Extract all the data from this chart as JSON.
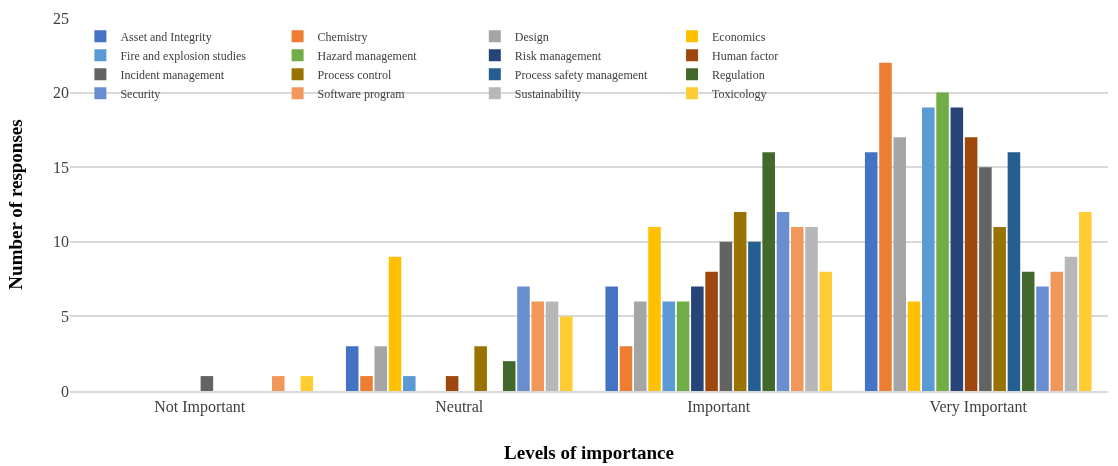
{
  "chart_data": {
    "type": "bar",
    "xlabel": "Levels of importance",
    "ylabel": "Number of responses",
    "categories": [
      "Not Important",
      "Neutral",
      "Important",
      "Very Important"
    ],
    "ylim": [
      0,
      25
    ],
    "yticks": [
      0,
      5,
      10,
      15,
      20,
      25
    ],
    "grid": "y",
    "legend": "top left",
    "series": [
      {
        "name": "Asset and Integrity",
        "color": "#4472c4",
        "values": [
          0,
          3,
          7,
          16
        ]
      },
      {
        "name": "Chemistry",
        "color": "#ed7d31",
        "values": [
          0,
          1,
          3,
          22
        ]
      },
      {
        "name": "Design",
        "color": "#a5a5a5",
        "values": [
          0,
          3,
          6,
          17
        ]
      },
      {
        "name": "Economics",
        "color": "#ffc000",
        "values": [
          0,
          9,
          11,
          6
        ]
      },
      {
        "name": "Fire and explosion studies",
        "color": "#5b9bd5",
        "values": [
          0,
          1,
          6,
          19
        ]
      },
      {
        "name": "Hazard management",
        "color": "#70ad47",
        "values": [
          0,
          0,
          6,
          20
        ]
      },
      {
        "name": "Risk management",
        "color": "#264478",
        "values": [
          0,
          0,
          7,
          19
        ]
      },
      {
        "name": "Human factor",
        "color": "#9e480e",
        "values": [
          0,
          1,
          8,
          17
        ]
      },
      {
        "name": "Incident management",
        "color": "#636363",
        "values": [
          1,
          0,
          10,
          15
        ]
      },
      {
        "name": "Process control",
        "color": "#997300",
        "values": [
          0,
          3,
          12,
          11
        ]
      },
      {
        "name": "Process safety management",
        "color": "#255e91",
        "values": [
          0,
          0,
          10,
          16
        ]
      },
      {
        "name": "Regulation",
        "color": "#43682b",
        "values": [
          0,
          2,
          16,
          8
        ]
      },
      {
        "name": "Security",
        "color": "#698ed0",
        "values": [
          0,
          7,
          12,
          7
        ]
      },
      {
        "name": "Software program",
        "color": "#f1975a",
        "values": [
          1,
          6,
          11,
          8
        ]
      },
      {
        "name": "Sustainability",
        "color": "#b7b7b7",
        "values": [
          0,
          6,
          11,
          9
        ]
      },
      {
        "name": "Toxicology",
        "color": "#ffcd33",
        "values": [
          1,
          5,
          8,
          12
        ]
      }
    ]
  }
}
